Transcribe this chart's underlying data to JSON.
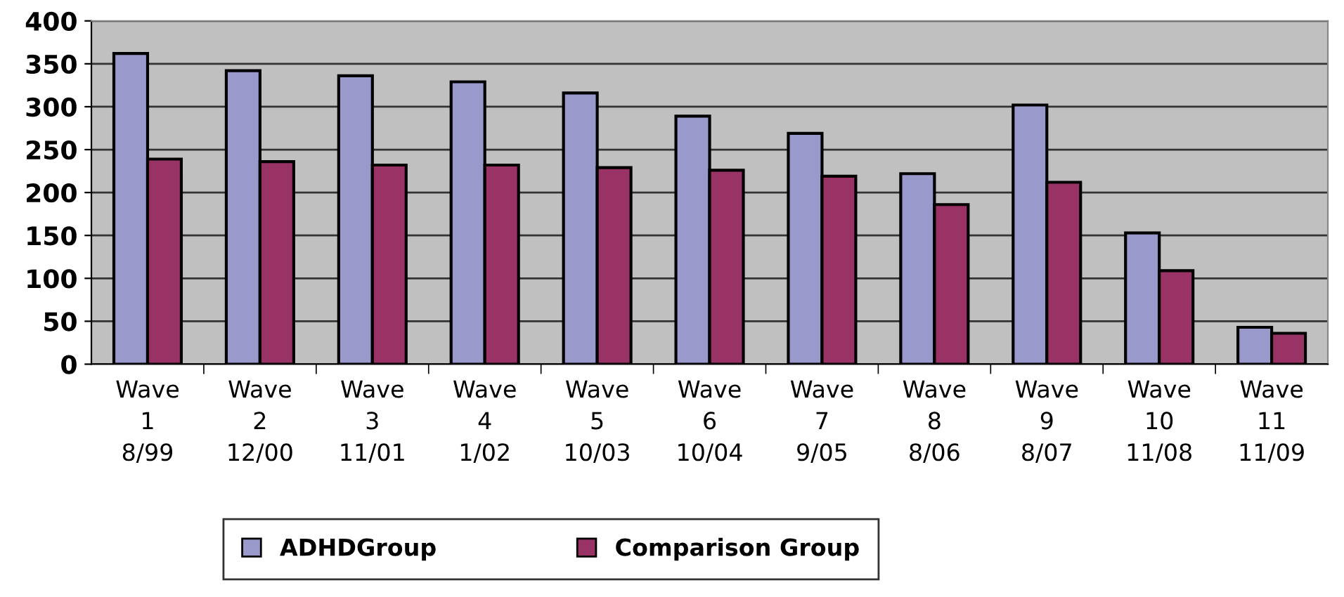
{
  "chart_data": {
    "type": "bar",
    "categories": [
      "Wave\n1\n8/99",
      "Wave\n2\n12/00",
      "Wave\n3\n11/01",
      "Wave\n4\n1/02",
      "Wave\n5\n10/03",
      "Wave\n6\n10/04",
      "Wave\n7\n9/05",
      "Wave\n8\n8/06",
      "Wave\n9\n8/07",
      "Wave\n10\n11/08",
      "Wave\n11\n11/09"
    ],
    "series": [
      {
        "name": "ADHDGroup",
        "color": "#9999cc",
        "values": [
          362,
          342,
          336,
          329,
          316,
          289,
          269,
          222,
          302,
          153,
          43
        ]
      },
      {
        "name": "Comparison Group",
        "color": "#993366",
        "values": [
          239,
          236,
          232,
          232,
          229,
          226,
          219,
          186,
          212,
          109,
          36
        ]
      }
    ],
    "ylim": [
      0,
      400
    ],
    "yticks": [
      0,
      50,
      100,
      150,
      200,
      250,
      300,
      350,
      400
    ],
    "grid": "y",
    "legend": "bottom"
  }
}
